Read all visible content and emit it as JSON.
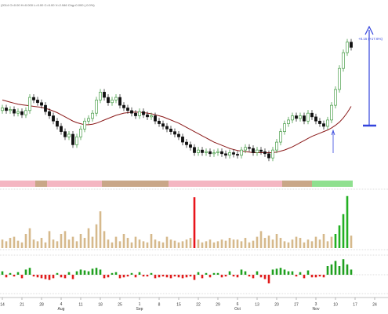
{
  "chart_data": {
    "type": "candlestick",
    "header": "(2014  O=0.00  H=0.000  L=0.00  C=0.00  V=2.946  Chg=0.000 (-0.0%)",
    "annotation": "+0.15 (+17.6%)",
    "categories": [
      "14",
      null,
      null,
      null,
      null,
      "21",
      null,
      null,
      null,
      null,
      "28",
      null,
      null,
      null,
      null,
      "4 Aug",
      null,
      null,
      null,
      null,
      "11",
      null,
      null,
      null,
      null,
      "18",
      null,
      null,
      null,
      null,
      "25",
      null,
      null,
      null,
      null,
      "1 Sep",
      null,
      null,
      null,
      null,
      "8",
      null,
      null,
      null,
      null,
      "15",
      null,
      null,
      null,
      null,
      "22",
      null,
      null,
      null,
      null,
      "29",
      null,
      null,
      null,
      null,
      "6 Oct",
      null,
      null,
      null,
      null,
      "13",
      null,
      null,
      null,
      null,
      "20",
      null,
      null,
      null,
      null,
      "27",
      null,
      null,
      null,
      null,
      "3 Nov",
      null,
      null,
      null,
      null,
      "10",
      null,
      null,
      null,
      null,
      "17",
      null,
      null,
      null,
      null,
      "24",
      null,
      null
    ],
    "open": [
      0.88,
      0.885,
      0.88,
      0.882,
      0.875,
      0.878,
      0.872,
      0.88,
      0.905,
      0.9,
      0.895,
      0.89,
      0.878,
      0.87,
      0.86,
      0.85,
      0.84,
      0.83,
      0.835,
      0.815,
      0.83,
      0.845,
      0.86,
      0.865,
      0.875,
      0.9,
      0.915,
      0.905,
      0.895,
      0.9,
      0.905,
      0.89,
      0.885,
      0.88,
      0.875,
      0.87,
      0.878,
      0.872,
      0.868,
      0.87,
      0.86,
      0.855,
      0.85,
      0.845,
      0.84,
      0.835,
      0.83,
      0.82,
      0.815,
      0.81,
      0.8,
      0.805,
      0.8,
      0.802,
      0.798,
      0.8,
      0.802,
      0.798,
      0.795,
      0.8,
      0.797,
      0.795,
      0.805,
      0.81,
      0.808,
      0.8,
      0.805,
      0.802,
      0.798,
      0.79,
      0.805,
      0.82,
      0.84,
      0.855,
      0.862,
      0.87,
      0.865,
      0.87,
      0.86,
      0.875,
      0.868,
      0.86,
      0.855,
      0.85,
      0.862,
      0.89,
      0.92,
      0.96,
      0.99,
      1.01,
      null,
      null,
      null,
      null,
      null,
      null,
      null,
      null
    ],
    "high": [
      0.891,
      0.891,
      0.888,
      0.888,
      0.884,
      0.884,
      0.886,
      0.911,
      0.911,
      0.906,
      0.901,
      0.896,
      0.884,
      0.876,
      0.866,
      0.856,
      0.846,
      0.841,
      0.841,
      0.836,
      0.851,
      0.866,
      0.871,
      0.881,
      0.906,
      0.921,
      0.921,
      0.911,
      0.906,
      0.911,
      0.911,
      0.896,
      0.891,
      0.886,
      0.881,
      0.884,
      0.884,
      0.878,
      0.876,
      0.876,
      0.866,
      0.861,
      0.856,
      0.851,
      0.846,
      0.841,
      0.836,
      0.826,
      0.821,
      0.816,
      0.811,
      0.811,
      0.808,
      0.808,
      0.806,
      0.808,
      0.808,
      0.804,
      0.806,
      0.806,
      0.803,
      0.811,
      0.816,
      0.816,
      0.814,
      0.811,
      0.811,
      0.808,
      0.804,
      0.811,
      0.826,
      0.846,
      0.861,
      0.868,
      0.876,
      0.876,
      0.876,
      0.876,
      0.881,
      0.881,
      0.874,
      0.866,
      0.861,
      0.868,
      0.896,
      0.926,
      0.966,
      0.996,
      1.016,
      1.016,
      null,
      null,
      null,
      null,
      null,
      null,
      null,
      null
    ],
    "low": [
      0.874,
      0.874,
      0.874,
      0.869,
      0.869,
      0.866,
      0.866,
      0.874,
      0.894,
      0.889,
      0.884,
      0.872,
      0.864,
      0.854,
      0.844,
      0.834,
      0.824,
      0.824,
      0.809,
      0.809,
      0.824,
      0.839,
      0.854,
      0.859,
      0.869,
      0.894,
      0.899,
      0.889,
      0.889,
      0.894,
      0.884,
      0.879,
      0.874,
      0.869,
      0.864,
      0.864,
      0.866,
      0.862,
      0.862,
      0.854,
      0.849,
      0.844,
      0.839,
      0.834,
      0.829,
      0.824,
      0.814,
      0.809,
      0.804,
      0.794,
      0.794,
      0.794,
      0.794,
      0.792,
      0.792,
      0.794,
      0.792,
      0.789,
      0.789,
      0.791,
      0.789,
      0.789,
      0.799,
      0.802,
      0.794,
      0.794,
      0.796,
      0.792,
      0.784,
      0.784,
      0.799,
      0.814,
      0.834,
      0.849,
      0.856,
      0.859,
      0.859,
      0.854,
      0.854,
      0.862,
      0.854,
      0.849,
      0.844,
      0.844,
      0.856,
      0.884,
      0.914,
      0.954,
      0.984,
      0.994,
      null,
      null,
      null,
      null,
      null,
      null,
      null,
      null
    ],
    "close": [
      0.885,
      0.88,
      0.882,
      0.875,
      0.878,
      0.872,
      0.88,
      0.905,
      0.9,
      0.895,
      0.89,
      0.878,
      0.87,
      0.86,
      0.85,
      0.84,
      0.83,
      0.835,
      0.815,
      0.83,
      0.845,
      0.86,
      0.865,
      0.875,
      0.9,
      0.915,
      0.905,
      0.895,
      0.9,
      0.905,
      0.89,
      0.885,
      0.88,
      0.875,
      0.87,
      0.878,
      0.872,
      0.868,
      0.87,
      0.86,
      0.855,
      0.85,
      0.845,
      0.84,
      0.835,
      0.83,
      0.82,
      0.815,
      0.81,
      0.8,
      0.805,
      0.8,
      0.802,
      0.798,
      0.8,
      0.802,
      0.798,
      0.795,
      0.8,
      0.797,
      0.795,
      0.805,
      0.81,
      0.808,
      0.8,
      0.805,
      0.802,
      0.798,
      0.79,
      0.805,
      0.82,
      0.84,
      0.855,
      0.862,
      0.87,
      0.865,
      0.87,
      0.86,
      0.875,
      0.868,
      0.86,
      0.855,
      0.85,
      0.862,
      0.89,
      0.92,
      0.96,
      0.99,
      1.01,
      1.0,
      null,
      null,
      null,
      null,
      null,
      null,
      null,
      null
    ],
    "up_color": "#2f8f2f",
    "down_color": "#111111",
    "ylim": [
      0.75,
      1.09
    ],
    "ma": {
      "color": "#8b1a1a",
      "values": [
        0.9,
        0.898,
        0.896,
        0.894,
        0.892,
        0.891,
        0.89,
        0.889,
        0.888,
        0.887,
        0.886,
        0.884,
        0.882,
        0.879,
        0.876,
        0.872,
        0.868,
        0.864,
        0.86,
        0.857,
        0.855,
        0.853,
        0.853,
        0.854,
        0.856,
        0.859,
        0.862,
        0.865,
        0.868,
        0.871,
        0.873,
        0.875,
        0.876,
        0.877,
        0.877,
        0.877,
        0.876,
        0.875,
        0.874,
        0.872,
        0.87,
        0.868,
        0.865,
        0.862,
        0.859,
        0.856,
        0.852,
        0.848,
        0.844,
        0.84,
        0.836,
        0.832,
        0.828,
        0.824,
        0.82,
        0.817,
        0.814,
        0.811,
        0.808,
        0.806,
        0.804,
        0.803,
        0.802,
        0.801,
        0.8,
        0.8,
        0.8,
        0.8,
        0.8,
        0.8,
        0.801,
        0.803,
        0.805,
        0.808,
        0.811,
        0.815,
        0.819,
        0.823,
        0.827,
        0.831,
        0.834,
        0.837,
        0.84,
        0.843,
        0.847,
        0.852,
        0.858,
        0.866,
        0.876,
        0.888,
        null,
        null,
        null,
        null,
        null,
        null,
        null,
        null
      ]
    },
    "volume": {
      "ylim": [
        0,
        10
      ],
      "values": [
        1.5,
        1.2,
        1.8,
        2,
        1.3,
        1,
        2.5,
        3.5,
        1.5,
        1.2,
        1.8,
        1,
        3,
        1.5,
        1.2,
        2.5,
        3,
        1.5,
        2,
        1.2,
        2.5,
        1.8,
        3.5,
        2,
        4.2,
        6.5,
        3,
        1.5,
        1,
        2,
        1.2,
        2.5,
        1.8,
        1,
        2,
        1.5,
        1.2,
        1,
        2.5,
        1.5,
        1.2,
        1,
        2,
        1.5,
        1.3,
        1,
        1.2,
        1.5,
        1.8,
        9,
        1.5,
        1,
        1.2,
        1.5,
        1,
        1.2,
        1.5,
        1.3,
        1.8,
        1.5,
        1.5,
        1.2,
        1.8,
        1,
        1.3,
        2,
        3,
        1.8,
        2.2,
        1.5,
        2.5,
        1.8,
        1.2,
        1,
        1.5,
        2,
        1.8,
        1,
        1.5,
        1.2,
        2,
        1.5,
        2.5,
        1.2,
        2,
        2.5,
        4,
        6,
        9.2,
        2.2,
        null,
        null,
        null,
        null,
        null,
        null,
        null,
        null
      ],
      "colors": [
        "#d6b98c",
        "#d6b98c",
        "#d6b98c",
        "#d6b98c",
        "#d6b98c",
        "#d6b98c",
        "#d6b98c",
        "#d6b98c",
        "#d6b98c",
        "#d6b98c",
        "#d6b98c",
        "#d6b98c",
        "#d6b98c",
        "#d6b98c",
        "#d6b98c",
        "#d6b98c",
        "#d6b98c",
        "#d6b98c",
        "#d6b98c",
        "#d6b98c",
        "#d6b98c",
        "#d6b98c",
        "#d6b98c",
        "#d6b98c",
        "#d6b98c",
        "#d6b98c",
        "#d6b98c",
        "#d6b98c",
        "#d6b98c",
        "#d6b98c",
        "#d6b98c",
        "#d6b98c",
        "#d6b98c",
        "#d6b98c",
        "#d6b98c",
        "#d6b98c",
        "#d6b98c",
        "#d6b98c",
        "#d6b98c",
        "#d6b98c",
        "#d6b98c",
        "#d6b98c",
        "#d6b98c",
        "#d6b98c",
        "#d6b98c",
        "#d6b98c",
        "#d6b98c",
        "#d6b98c",
        "#d6b98c",
        "#e8141b",
        "#d6b98c",
        "#d6b98c",
        "#d6b98c",
        "#d6b98c",
        "#d6b98c",
        "#d6b98c",
        "#d6b98c",
        "#d6b98c",
        "#d6b98c",
        "#d6b98c",
        "#d6b98c",
        "#d6b98c",
        "#d6b98c",
        "#d6b98c",
        "#d6b98c",
        "#d6b98c",
        "#d6b98c",
        "#d6b98c",
        "#d6b98c",
        "#d6b98c",
        "#d6b98c",
        "#d6b98c",
        "#d6b98c",
        "#d6b98c",
        "#d6b98c",
        "#d6b98c",
        "#d6b98c",
        "#d6b98c",
        "#d6b98c",
        "#d6b98c",
        "#d6b98c",
        "#d6b98c",
        "#d6b98c",
        "#d6b98c",
        "#d6b98c",
        "#22b022",
        "#22b022",
        "#22b022",
        "#22b022",
        "#d6b98c",
        "#d6b98c",
        "#d6b98c",
        "#d6b98c",
        "#d6b98c",
        "#d6b98c",
        "#d6b98c",
        "#d6b98c",
        "#d6b98c"
      ]
    },
    "indicator": {
      "ylim": [
        -1,
        1
      ],
      "up_color": "#1fa01f",
      "down_color": "#e01b1b",
      "values": [
        0.2,
        -0.15,
        0.1,
        -0.1,
        0.15,
        -0.2,
        0.3,
        0.4,
        -0.1,
        -0.15,
        -0.2,
        -0.25,
        -0.3,
        -0.2,
        0.1,
        -0.15,
        -0.2,
        0.15,
        -0.25,
        0.2,
        0.3,
        0.25,
        0.2,
        0.35,
        0.4,
        0.3,
        -0.2,
        -0.15,
        0.1,
        0.15,
        -0.2,
        -0.15,
        -0.1,
        0.1,
        -0.15,
        0.15,
        -0.1,
        -0.1,
        0.1,
        -0.2,
        -0.15,
        -0.1,
        -0.15,
        -0.2,
        -0.1,
        -0.15,
        -0.2,
        -0.15,
        -0.1,
        -0.3,
        0.15,
        -0.2,
        0.1,
        -0.15,
        0.1,
        0.1,
        -0.15,
        -0.1,
        0.2,
        -0.1,
        -0.15,
        0.3,
        0.2,
        -0.1,
        -0.2,
        0.2,
        -0.15,
        -0.25,
        -0.5,
        0.3,
        0.35,
        0.4,
        0.3,
        0.2,
        0.2,
        -0.1,
        0.15,
        -0.2,
        0.25,
        -0.15,
        -0.15,
        -0.1,
        -0.15,
        0.5,
        0.6,
        0.8,
        0.5,
        0.9,
        0.6,
        0.3,
        null,
        null,
        null,
        null,
        null,
        null,
        null,
        null
      ]
    }
  }
}
